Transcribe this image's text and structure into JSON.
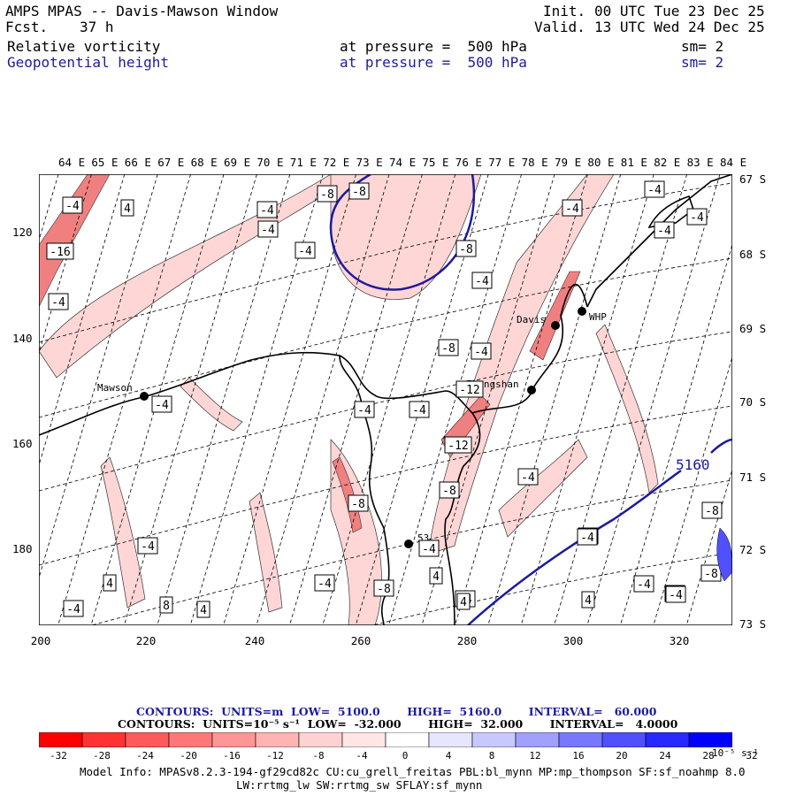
{
  "header": {
    "title": "AMPS MPAS -- Davis-Mawson Window",
    "fcst_label": "Fcst.",
    "fcst_value": "37 h",
    "init_label": "Init.",
    "init_value": "00 UTC Tue 23 Dec 25",
    "valid_label": "Valid.",
    "valid_value": "13 UTC Wed 24 Dec 25",
    "field1": {
      "name": "Relative vorticity",
      "level": "at pressure =  500 hPa",
      "sm": "sm= 2"
    },
    "field2": {
      "name": "Geopotential height",
      "level": "at pressure =  500 hPa",
      "sm": "sm= 2"
    }
  },
  "map": {
    "lon_labels": [
      "64 E",
      "65 E",
      "66 E",
      "67 E",
      "68 E",
      "69 E",
      "70 E",
      "71 E",
      "72 E",
      "73 E",
      "74 E",
      "75 E",
      "76 E",
      "77 E",
      "78 E",
      "79 E",
      "80 E",
      "81 E",
      "82 E",
      "83 E",
      "84 E"
    ],
    "lat_labels": [
      "67 S",
      "68 S",
      "69 S",
      "70 S",
      "71 S",
      "72 S",
      "73 S"
    ],
    "y_axis": [
      "120",
      "140",
      "160",
      "180"
    ],
    "x_axis": [
      "200",
      "220",
      "240",
      "260",
      "280",
      "300",
      "320"
    ],
    "stations": [
      {
        "name": "Mawson"
      },
      {
        "name": "Davis"
      },
      {
        "name": "WHP"
      },
      {
        "name": "Zhongshan"
      },
      {
        "name": "53"
      }
    ],
    "height_contour_label": "5160",
    "vort_labels": [
      "-4",
      "4",
      "-16",
      "-4",
      "-4",
      "-4",
      "-8",
      "-8",
      "-4",
      "-8",
      "-4",
      "-4",
      "-4",
      "-4",
      "-8",
      "-4",
      "-4",
      "-12",
      "-4",
      "-4",
      "-12",
      "-8",
      "-4",
      "-8",
      "-4",
      "-8",
      "-8",
      "-4",
      "4",
      "-4",
      "4",
      "8",
      "4",
      "-4",
      "-4",
      "-4",
      "-8",
      "-4",
      "4",
      "-4",
      "4",
      "-4",
      "-4",
      "-4",
      "4"
    ]
  },
  "info": {
    "line1": "CONTOURS:  UNITS=m  LOW=  5100.0       HIGH=  5160.0       INTERVAL=   60.000",
    "line2": "CONTOURS:  UNITS=10⁻⁵ s⁻¹  LOW=  -32.000       HIGH=  32.000       INTERVAL=   4.0000"
  },
  "colorbar": {
    "ticks": [
      "-32",
      "-28",
      "-24",
      "-20",
      "-16",
      "-12",
      "-8",
      "-4",
      "0",
      "4",
      "8",
      "12",
      "16",
      "20",
      "24",
      "28",
      "32"
    ],
    "unit": "10⁻⁵ s⁻¹",
    "colors": [
      "#ff0000",
      "#ff3232",
      "#ff5a5a",
      "#ff7878",
      "#ff9696",
      "#ffb4b4",
      "#ffd2d2",
      "#ffe6e6",
      "#ffffff",
      "#ffffff",
      "#e6e6ff",
      "#c8c8ff",
      "#a0a0ff",
      "#7878ff",
      "#5050ff",
      "#2828ff",
      "#0000ff"
    ]
  },
  "model_info": {
    "line1": "Model Info: MPASv8.2.3-194-gf29cd82c CU:cu_grell_freitas PBL:bl_mynn MP:mp_thompson SF:sf_noahmp 8.0",
    "line2": "LW:rrtmg_lw SW:rrtmg_sw SFLAY:sf_mynn"
  }
}
